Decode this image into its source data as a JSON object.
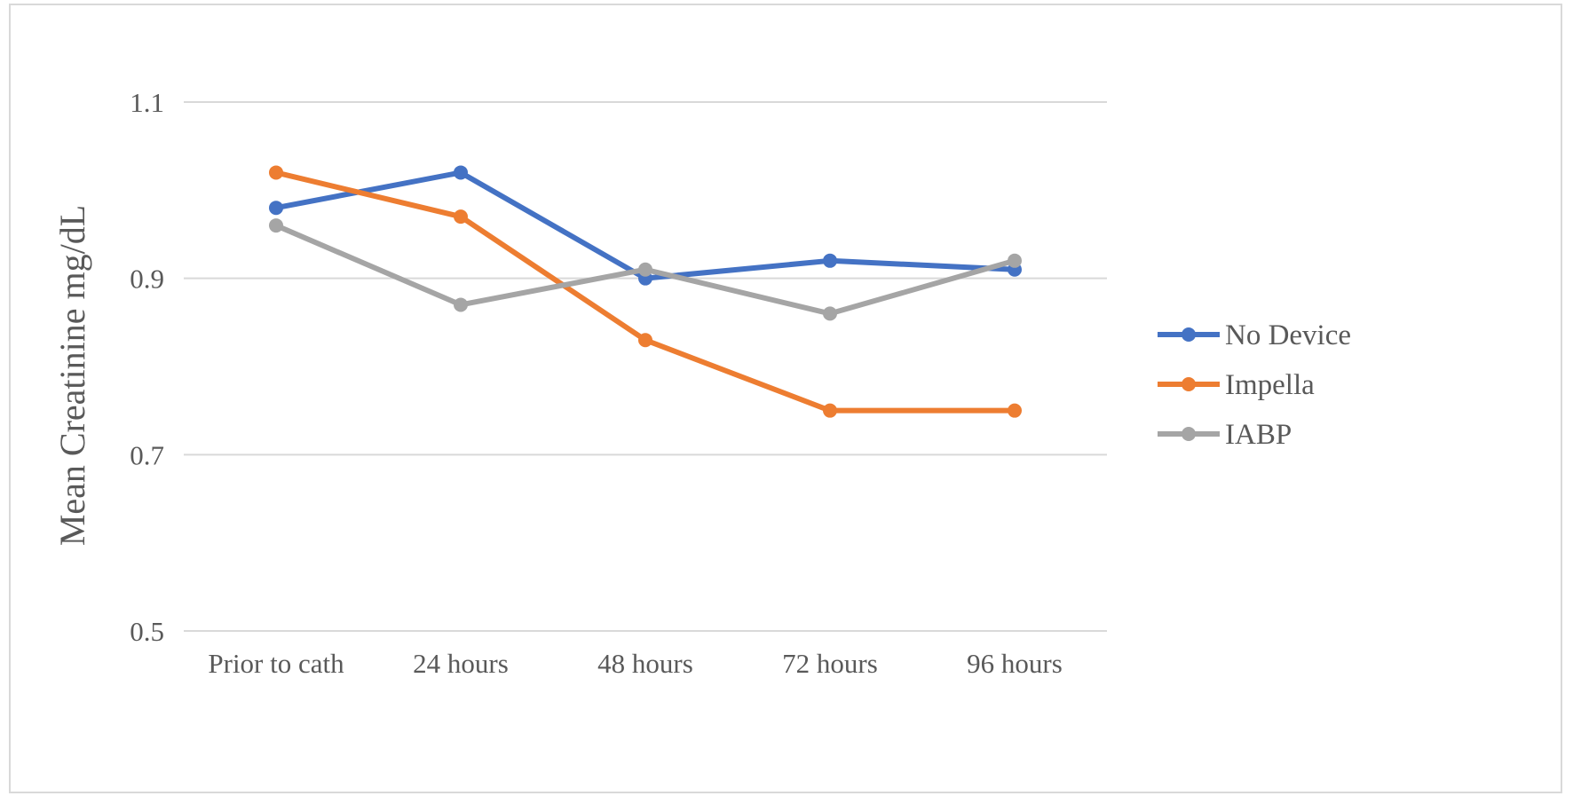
{
  "chart_data": {
    "type": "line",
    "title": "",
    "xlabel": "",
    "ylabel": "Mean Creatinine  mg/dL",
    "categories": [
      "Prior to cath",
      "24 hours",
      "48 hours",
      "72 hours",
      "96 hours"
    ],
    "ylim": [
      0.5,
      1.1
    ],
    "yticks": [
      "0.5",
      "0.7",
      "0.9",
      "1.1"
    ],
    "grid": true,
    "legend_position": "right",
    "series": [
      {
        "name": "No Device",
        "color": "#4472c4",
        "values": [
          0.98,
          1.02,
          0.9,
          0.92,
          0.91
        ]
      },
      {
        "name": "Impella",
        "color": "#ed7d31",
        "values": [
          1.02,
          0.97,
          0.83,
          0.75,
          0.75
        ]
      },
      {
        "name": "IABP",
        "color": "#a5a5a5",
        "values": [
          0.96,
          0.87,
          0.91,
          0.86,
          0.92
        ]
      }
    ]
  }
}
